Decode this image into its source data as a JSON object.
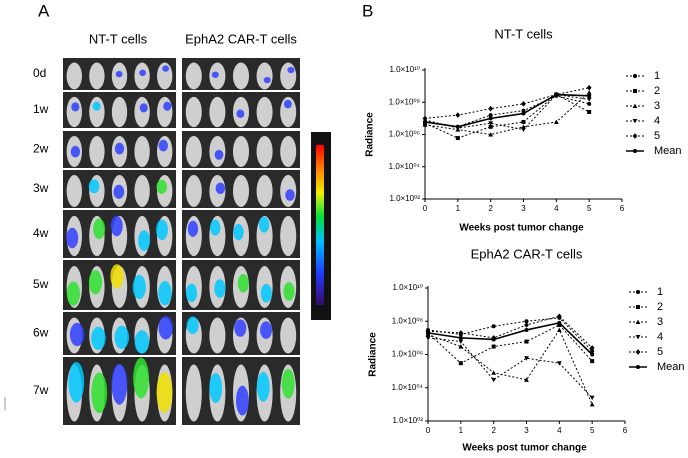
{
  "panel_a": {
    "label": "A",
    "columns": [
      "NT-T cells",
      "EphA2 CAR-T cells"
    ],
    "rows": [
      "0d",
      "1w",
      "2w",
      "3w",
      "4w",
      "5w",
      "6w",
      "7w"
    ]
  },
  "panel_b_label": "B",
  "chart_data": [
    {
      "type": "line",
      "title": "NT-T cells",
      "y_label": "Radiance",
      "x_label": "Weeks post tumor change",
      "log_y": true,
      "x": [
        0,
        1,
        2,
        3,
        4,
        5
      ],
      "xlim": [
        0,
        6
      ],
      "xticks": [
        0,
        1,
        2,
        3,
        4,
        5,
        6
      ],
      "ylim": [
        100,
        10000000000
      ],
      "yticks": [
        {
          "value": 100,
          "label": "1.0×10⁰²"
        },
        {
          "value": 10000,
          "label": "1.0×10⁰⁴"
        },
        {
          "value": 1000000,
          "label": "1.0×10⁰⁶"
        },
        {
          "value": 100000000,
          "label": "1.0×10⁰⁸"
        },
        {
          "value": 10000000000,
          "label": "1.0×10¹⁰"
        }
      ],
      "legend": "right",
      "series": [
        {
          "name": "1",
          "color": "#000000",
          "marker": "circle",
          "line_style": "dotted",
          "values": [
            6000000,
            3000000,
            16000000,
            30000000,
            250000000,
            80000000
          ]
        },
        {
          "name": "2",
          "color": "#000000",
          "marker": "square",
          "line_style": "dotted",
          "values": [
            5000000,
            600000,
            3000000,
            6000000,
            300000000,
            25000000
          ]
        },
        {
          "name": "3",
          "color": "#000000",
          "marker": "triangle-up",
          "line_style": "dotted",
          "values": [
            4000000,
            2000000,
            1000000,
            3000000,
            6000000,
            400000000
          ]
        },
        {
          "name": "4",
          "color": "#000000",
          "marker": "triangle-down",
          "line_style": "dotted",
          "values": [
            8000000,
            2500000,
            5000000,
            2000000,
            300000000,
            150000000
          ]
        },
        {
          "name": "5",
          "color": "#000000",
          "marker": "diamond",
          "line_style": "dotted",
          "values": [
            10000000,
            16000000,
            40000000,
            80000000,
            300000000,
            800000000
          ]
        },
        {
          "name": "Mean",
          "color": "#000000",
          "marker": "circle",
          "line_style": "solid",
          "values": [
            6000000,
            3000000,
            10000000,
            20000000,
            300000000,
            250000000
          ]
        }
      ]
    },
    {
      "type": "line",
      "title": "EphA2 CAR-T cells",
      "y_label": "Radiance",
      "x_label": "Weeks post tumor change",
      "log_y": true,
      "x": [
        0,
        1,
        2,
        3,
        4,
        5
      ],
      "xlim": [
        0,
        6
      ],
      "xticks": [
        0,
        1,
        2,
        3,
        4,
        5,
        6
      ],
      "ylim": [
        100,
        10000000000
      ],
      "yticks": [
        {
          "value": 100,
          "label": "1.0×10⁰²"
        },
        {
          "value": 10000,
          "label": "1.0×10⁰⁴"
        },
        {
          "value": 1000000,
          "label": "1.0×10⁰⁶"
        },
        {
          "value": 100000000,
          "label": "1.0×10⁰⁸"
        },
        {
          "value": 10000000000,
          "label": "1.0×10¹⁰"
        }
      ],
      "legend": "right",
      "series": [
        {
          "name": "1",
          "color": "#000000",
          "marker": "circle",
          "line_style": "dotted",
          "values": [
            30000000,
            16000000,
            50000000,
            100000000,
            160000000,
            1600000
          ]
        },
        {
          "name": "2",
          "color": "#000000",
          "marker": "square",
          "line_style": "dotted",
          "values": [
            20000000,
            300000,
            3000000,
            6000000,
            60000000,
            400000
          ]
        },
        {
          "name": "3",
          "color": "#000000",
          "marker": "triangle-up",
          "line_style": "dotted",
          "values": [
            16000000,
            3000000,
            80000,
            30000,
            30000000,
            1000
          ]
        },
        {
          "name": "4",
          "color": "#000000",
          "marker": "triangle-down",
          "line_style": "dotted",
          "values": [
            10000000,
            6000000,
            30000,
            600000,
            300000,
            2500
          ]
        },
        {
          "name": "5",
          "color": "#000000",
          "marker": "diamond",
          "line_style": "dotted",
          "values": [
            25000000,
            20000000,
            10000000,
            60000000,
            200000000,
            2500000
          ]
        },
        {
          "name": "Mean",
          "color": "#000000",
          "marker": "circle",
          "line_style": "solid",
          "values": [
            20000000,
            10000000,
            8000000,
            30000000,
            80000000,
            1000000
          ]
        }
      ]
    }
  ]
}
